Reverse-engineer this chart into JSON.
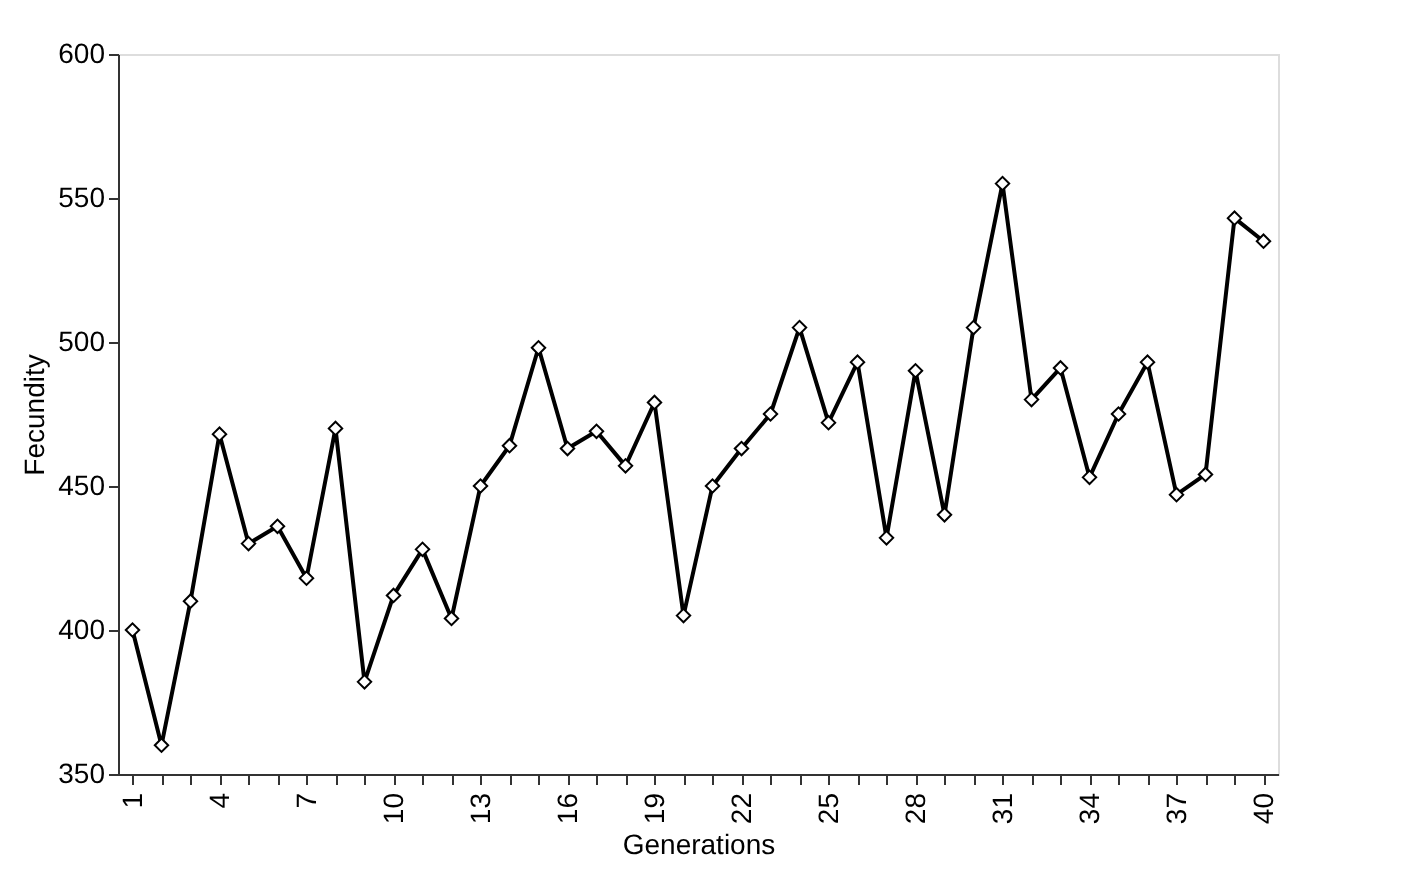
{
  "chart_data": {
    "type": "line",
    "xlabel": "Generations",
    "ylabel": "Fecundity",
    "categories": [
      "1",
      null,
      null,
      "4",
      null,
      null,
      "7",
      null,
      null,
      "10",
      null,
      null,
      "13",
      null,
      null,
      "16",
      null,
      null,
      "19",
      null,
      null,
      "22",
      null,
      null,
      "25",
      null,
      null,
      "28",
      null,
      null,
      "31",
      null,
      null,
      "34",
      null,
      null,
      "37",
      null,
      null,
      "40"
    ],
    "series": [
      {
        "color": "#000000",
        "values": [
          400,
          360,
          410,
          468,
          430,
          436,
          418,
          470,
          382,
          412,
          428,
          404,
          450,
          464,
          498,
          463,
          469,
          457,
          479,
          405,
          450,
          463,
          475,
          505,
          472,
          493,
          432,
          490,
          440,
          505,
          555,
          480,
          491,
          453,
          475,
          493,
          447,
          454,
          543,
          535
        ]
      }
    ],
    "ylim": [
      350,
      600
    ],
    "yticks": [
      350,
      400,
      450,
      500,
      550,
      600
    ],
    "grid": false,
    "marker": "diamond",
    "line_style": "solid"
  }
}
